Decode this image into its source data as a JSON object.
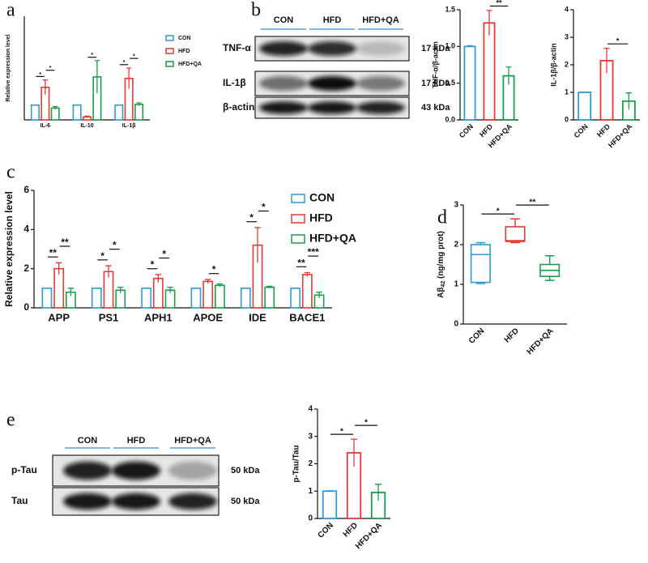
{
  "panel_labels": [
    "a",
    "b",
    "c",
    "d",
    "e"
  ],
  "blots": [
    {
      "lanes": [
        "CON",
        "HFD",
        "HFD+QA"
      ],
      "rows": [
        {
          "label": "TNF-α",
          "size": "17 kDa"
        },
        {
          "label": "IL-1β",
          "size": "17 kDa"
        },
        {
          "label": "β-actin",
          "size": "43 kDa"
        }
      ]
    },
    {
      "lanes": [
        "CON",
        "HFD",
        "HFD+QA"
      ],
      "rows": [
        {
          "label": "p-Tau",
          "size": "50 kDa"
        },
        {
          "label": "Tau",
          "size": "50 kDa"
        }
      ]
    }
  ],
  "chart_data": [
    {
      "type": "bar",
      "ylabel": "Relative expression level",
      "categories": [
        "IL-6",
        "IL-10",
        "IL-1β"
      ],
      "series": [
        {
          "name": "CON",
          "color": "#2e9bd6",
          "values": [
            1,
            1,
            1
          ]
        },
        {
          "name": "HFD",
          "color": "#e63a35",
          "values": [
            2.2,
            0.2,
            2.8
          ],
          "errors": [
            0.5,
            0.05,
            0.7
          ]
        },
        {
          "name": "HFD+QA",
          "color": "#1a9e4b",
          "values": [
            0.8,
            2.9,
            1.05
          ],
          "errors": [
            0.1,
            1.1,
            0.1
          ]
        }
      ],
      "ylim": [
        0,
        7
      ],
      "legend": "right",
      "significance": [
        {
          "category": "IL-6",
          "groups": [
            "CON",
            "HFD"
          ],
          "label": "*"
        },
        {
          "category": "IL-6",
          "groups": [
            "HFD",
            "HFD+QA"
          ],
          "label": "*"
        },
        {
          "category": "IL-10",
          "groups": [
            "HFD",
            "HFD+QA"
          ],
          "label": "*"
        },
        {
          "category": "IL-1β",
          "groups": [
            "CON",
            "HFD"
          ],
          "label": "*"
        },
        {
          "category": "IL-1β",
          "groups": [
            "HFD",
            "HFD+QA"
          ],
          "label": "*"
        }
      ]
    },
    {
      "type": "bar",
      "ylabel": "TNF-α/β-actin",
      "categories": [
        "CON",
        "HFD",
        "HFD+QA"
      ],
      "colors": [
        "#2e9bd6",
        "#e63a35",
        "#1a9e4b"
      ],
      "values": [
        1.0,
        1.32,
        0.6
      ],
      "errors": [
        0.01,
        0.17,
        0.12
      ],
      "ylim": [
        0,
        1.5
      ],
      "yticks": [
        {
          "value": 0,
          "label": "0.0"
        },
        {
          "value": 0.5,
          "label": "0.5"
        },
        {
          "value": 1,
          "label": "1.0"
        },
        {
          "value": 1.5,
          "label": "1.5"
        }
      ],
      "significance": [
        {
          "groups": [
            "HFD",
            "HFD+QA"
          ],
          "label": "**"
        }
      ]
    },
    {
      "type": "bar",
      "ylabel": "IL-1β/β-actin",
      "categories": [
        "CON",
        "HFD",
        "HFD+QA"
      ],
      "colors": [
        "#2e9bd6",
        "#e63a35",
        "#1a9e4b"
      ],
      "values": [
        1.0,
        2.15,
        0.68
      ],
      "errors": [
        0.01,
        0.45,
        0.3
      ],
      "ylim": [
        0,
        4
      ],
      "yticks": [
        0,
        1,
        2,
        3,
        4
      ],
      "significance": [
        {
          "groups": [
            "HFD",
            "HFD+QA"
          ],
          "label": "*"
        }
      ]
    },
    {
      "type": "bar",
      "ylabel": "Relative expression level",
      "categories": [
        "APP",
        "PS1",
        "APH1",
        "APOE",
        "IDE",
        "BACE1"
      ],
      "series": [
        {
          "name": "CON",
          "color": "#2e9bd6",
          "values": [
            1,
            1,
            1,
            1,
            1,
            1
          ]
        },
        {
          "name": "HFD",
          "color": "#e63a35",
          "values": [
            2.0,
            1.85,
            1.5,
            1.35,
            3.2,
            1.7
          ],
          "errors": [
            0.3,
            0.3,
            0.2,
            0.1,
            0.9,
            0.1
          ]
        },
        {
          "name": "HFD+QA",
          "color": "#1a9e4b",
          "values": [
            0.8,
            0.9,
            0.9,
            1.15,
            1.05,
            0.65
          ],
          "errors": [
            0.2,
            0.15,
            0.15,
            0.07,
            0.05,
            0.15
          ]
        }
      ],
      "ylim": [
        0,
        6
      ],
      "yticks": [
        0,
        2,
        4,
        6
      ],
      "legend": "right",
      "significance": [
        {
          "category": "APP",
          "groups": [
            "CON",
            "HFD"
          ],
          "label": "**"
        },
        {
          "category": "APP",
          "groups": [
            "HFD",
            "HFD+QA"
          ],
          "label": "**"
        },
        {
          "category": "PS1",
          "groups": [
            "CON",
            "HFD"
          ],
          "label": "*"
        },
        {
          "category": "PS1",
          "groups": [
            "HFD",
            "HFD+QA"
          ],
          "label": "*"
        },
        {
          "category": "APH1",
          "groups": [
            "CON",
            "HFD"
          ],
          "label": "*"
        },
        {
          "category": "APH1",
          "groups": [
            "HFD",
            "HFD+QA"
          ],
          "label": "*"
        },
        {
          "category": "APOE",
          "groups": [
            "HFD",
            "HFD+QA"
          ],
          "label": "*"
        },
        {
          "category": "IDE",
          "groups": [
            "CON",
            "HFD"
          ],
          "label": "*"
        },
        {
          "category": "IDE",
          "groups": [
            "HFD",
            "HFD+QA"
          ],
          "label": "*"
        },
        {
          "category": "BACE1",
          "groups": [
            "CON",
            "HFD"
          ],
          "label": "**"
        },
        {
          "category": "BACE1",
          "groups": [
            "HFD",
            "HFD+QA"
          ],
          "label": "***"
        }
      ]
    },
    {
      "type": "box",
      "ylabel": {
        "base": "Aβ",
        "sub": "42",
        "rest": " (ng/mg prot)"
      },
      "categories": [
        "CON",
        "HFD",
        "HFD+QA"
      ],
      "colors": [
        "#2e9bd6",
        "#e63a35",
        "#1a9e4b"
      ],
      "min": [
        1.02,
        2.05,
        1.1
      ],
      "q1": [
        1.05,
        2.08,
        1.2
      ],
      "median": [
        1.75,
        2.1,
        1.35
      ],
      "q3": [
        2.0,
        2.45,
        1.5
      ],
      "max": [
        2.05,
        2.65,
        1.72
      ],
      "ylim": [
        0,
        3
      ],
      "yticks": [
        0,
        1,
        2,
        3
      ],
      "significance": [
        {
          "groups": [
            "CON",
            "HFD"
          ],
          "label": "*"
        },
        {
          "groups": [
            "HFD",
            "HFD+QA"
          ],
          "label": "**"
        }
      ]
    },
    {
      "type": "bar",
      "ylabel": "p-Tau/Tau",
      "categories": [
        "CON",
        "HFD",
        "HFD+QA"
      ],
      "colors": [
        "#2e9bd6",
        "#e63a35",
        "#1a9e4b"
      ],
      "values": [
        1.0,
        2.4,
        0.95
      ],
      "errors": [
        0.01,
        0.5,
        0.3
      ],
      "ylim": [
        0,
        4
      ],
      "yticks": [
        0,
        1,
        2,
        3,
        4
      ],
      "significance": [
        {
          "groups": [
            "CON",
            "HFD"
          ],
          "label": "*"
        },
        {
          "groups": [
            "HFD",
            "HFD+QA"
          ],
          "label": "*"
        }
      ]
    }
  ]
}
